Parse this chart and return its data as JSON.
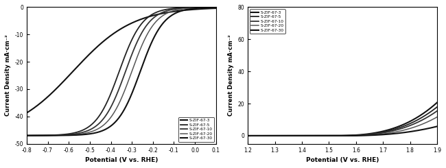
{
  "left": {
    "ylabel": "Current Density mA·cm⁻²",
    "xlabel": "Potential (V vs. RHE)",
    "xlim": [
      -0.8,
      0.1
    ],
    "ylim": [
      -50,
      0
    ],
    "yticks": [
      0,
      -10,
      -20,
      -30,
      -40,
      -50
    ],
    "xticks": [
      -0.8,
      -0.7,
      -0.6,
      -0.5,
      -0.4,
      -0.3,
      -0.2,
      -0.1,
      0.0,
      0.1
    ],
    "legend_labels": [
      "S-ZIF-67-3",
      "S-ZIF-67-5",
      "S-ZIF-67-10",
      "S-ZIF-67-20",
      "S-ZIF-67-30"
    ],
    "orr_curves": [
      {
        "hw": -0.58,
        "jlim": -47,
        "k": 7,
        "color": "#111111",
        "lw": 1.5,
        "ls": "-"
      },
      {
        "hw": -0.36,
        "jlim": -47,
        "k": 18,
        "color": "#222222",
        "lw": 1.3,
        "ls": "-"
      },
      {
        "hw": -0.33,
        "jlim": -47,
        "k": 18,
        "color": "#333333",
        "lw": 1.3,
        "ls": "-"
      },
      {
        "hw": -0.3,
        "jlim": -47,
        "k": 18,
        "color": "#555555",
        "lw": 1.1,
        "ls": "-"
      },
      {
        "hw": -0.26,
        "jlim": -47,
        "k": 18,
        "color": "#111111",
        "lw": 1.5,
        "ls": "-"
      }
    ]
  },
  "right": {
    "ylabel": "Current Density mA·cm⁻²",
    "xlabel": "Potential (V vs. RHE)",
    "xlim": [
      1.2,
      1.9
    ],
    "ylim": [
      -5,
      80
    ],
    "yticks": [
      0,
      20,
      40,
      60,
      80
    ],
    "xticks": [
      1.2,
      1.3,
      1.4,
      1.5,
      1.6,
      1.7,
      1.8,
      1.9
    ],
    "legend_labels": [
      "S-ZIF-67-3",
      "S-ZIF-67-5",
      "S-ZIF-67-10",
      "S-ZIF-67-20",
      "S-ZIF-67-30"
    ],
    "oer_curves": [
      {
        "onset": 1.49,
        "alpha": 300,
        "beta": 3.0,
        "color": "#111111",
        "lw": 1.5,
        "ls": "-"
      },
      {
        "onset": 1.5,
        "alpha": 280,
        "beta": 3.0,
        "color": "#222222",
        "lw": 1.3,
        "ls": "-"
      },
      {
        "onset": 1.51,
        "alpha": 260,
        "beta": 3.0,
        "color": "#333333",
        "lw": 1.3,
        "ls": "-"
      },
      {
        "onset": 1.53,
        "alpha": 230,
        "beta": 3.0,
        "color": "#555555",
        "lw": 1.1,
        "ls": "-"
      },
      {
        "onset": 1.55,
        "alpha": 80,
        "beta": 2.5,
        "color": "#111111",
        "lw": 1.5,
        "ls": "-"
      }
    ]
  }
}
